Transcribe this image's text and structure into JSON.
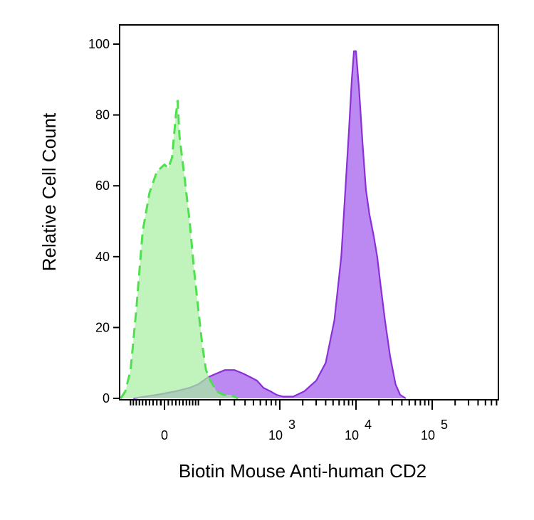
{
  "chart_data": {
    "type": "area",
    "title": "",
    "xlabel": "Biotin Mouse Anti-human CD2",
    "ylabel": "Relative Cell Count",
    "x_scale": "biexponential",
    "x_ticks": [
      {
        "value": 0,
        "label": "0"
      },
      {
        "value": 1000,
        "label": "10",
        "exp": "3"
      },
      {
        "value": 10000,
        "label": "10",
        "exp": "4"
      },
      {
        "value": 100000,
        "label": "10",
        "exp": "5"
      }
    ],
    "ylim": [
      0,
      100
    ],
    "y_ticks": [
      0,
      20,
      40,
      60,
      80,
      100
    ],
    "grid": false,
    "legend": "none",
    "series": [
      {
        "color": "#8b2fd6",
        "fill": "#b47cf0",
        "line_style": "solid",
        "points": [
          [
            -90,
            0
          ],
          [
            -20,
            1
          ],
          [
            30,
            2
          ],
          [
            70,
            3
          ],
          [
            100,
            4
          ],
          [
            140,
            6
          ],
          [
            180,
            7
          ],
          [
            230,
            8
          ],
          [
            300,
            8
          ],
          [
            380,
            7
          ],
          [
            460,
            6
          ],
          [
            550,
            5
          ],
          [
            650,
            3
          ],
          [
            780,
            2
          ],
          [
            920,
            1
          ],
          [
            1100,
            0.5
          ],
          [
            1500,
            0.5
          ],
          [
            2100,
            2
          ],
          [
            3000,
            5
          ],
          [
            4000,
            10
          ],
          [
            5200,
            22
          ],
          [
            6400,
            40
          ],
          [
            7300,
            60
          ],
          [
            8100,
            76
          ],
          [
            8800,
            90
          ],
          [
            9400,
            98
          ],
          [
            10000,
            98
          ],
          [
            11000,
            87
          ],
          [
            12200,
            72
          ],
          [
            13500,
            59
          ],
          [
            15000,
            52
          ],
          [
            17000,
            46
          ],
          [
            19000,
            40
          ],
          [
            21000,
            32
          ],
          [
            24000,
            22
          ],
          [
            28000,
            12
          ],
          [
            33000,
            4
          ],
          [
            38000,
            1
          ],
          [
            45000,
            0
          ]
        ]
      },
      {
        "color": "#4fe04f",
        "fill": "#a6f0a0",
        "line_style": "dashed",
        "points": [
          [
            -140,
            0
          ],
          [
            -120,
            2
          ],
          [
            -100,
            8
          ],
          [
            -80,
            25
          ],
          [
            -60,
            47
          ],
          [
            -40,
            58
          ],
          [
            -20,
            64
          ],
          [
            0,
            66
          ],
          [
            10,
            65
          ],
          [
            20,
            68
          ],
          [
            30,
            80
          ],
          [
            35,
            84
          ],
          [
            40,
            74
          ],
          [
            55,
            62
          ],
          [
            70,
            50
          ],
          [
            85,
            36
          ],
          [
            100,
            25
          ],
          [
            115,
            15
          ],
          [
            130,
            8
          ],
          [
            150,
            5
          ],
          [
            180,
            2
          ],
          [
            220,
            1
          ],
          [
            270,
            1
          ],
          [
            330,
            0
          ]
        ]
      }
    ]
  }
}
